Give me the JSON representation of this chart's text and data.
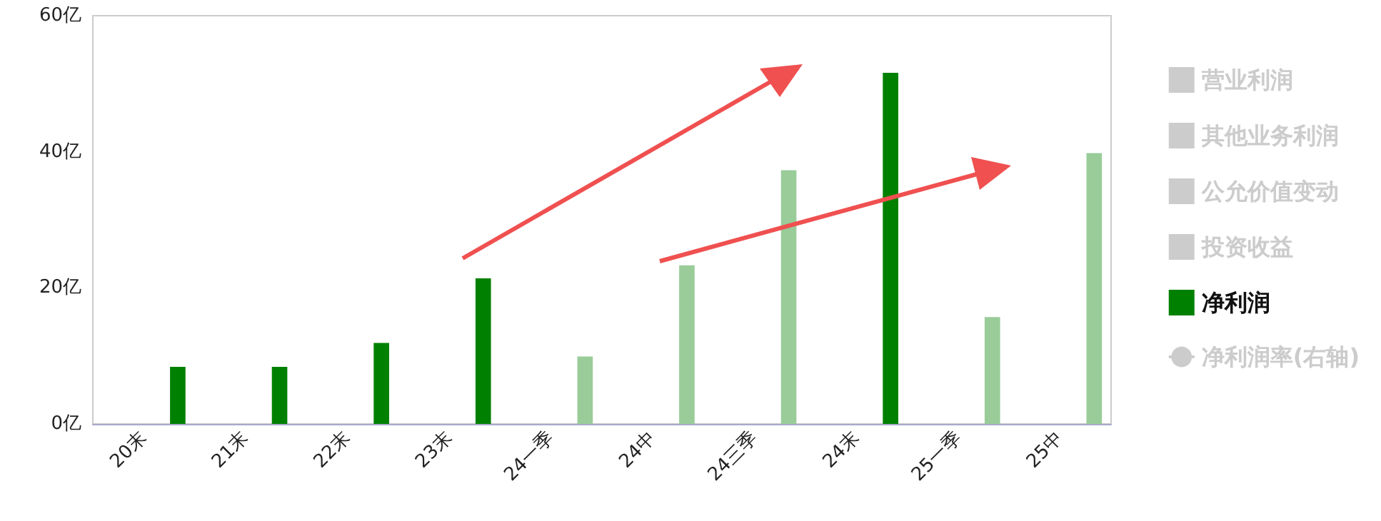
{
  "chart_data": {
    "type": "bar",
    "categories": [
      "20末",
      "21末",
      "22末",
      "23末",
      "24一季",
      "24中",
      "24三季",
      "24末",
      "25一季",
      "25中"
    ],
    "series": [
      {
        "name": "营业利润",
        "color": "#cccccc",
        "values": [
          null,
          null,
          null,
          null,
          null,
          null,
          null,
          null,
          null,
          null
        ]
      },
      {
        "name": "其他业务利润",
        "color": "#cccccc",
        "values": [
          null,
          null,
          null,
          null,
          null,
          null,
          null,
          null,
          null,
          null
        ]
      },
      {
        "name": "公允价值变动",
        "color": "#cccccc",
        "values": [
          null,
          null,
          null,
          null,
          null,
          null,
          null,
          null,
          null,
          null
        ]
      },
      {
        "name": "投资收益",
        "color": "#cccccc",
        "values": [
          null,
          null,
          null,
          null,
          null,
          null,
          null,
          null,
          null,
          null
        ]
      },
      {
        "name": "净利润",
        "color": "#008000",
        "colors": [
          "#008000",
          "#008000",
          "#008000",
          "#008000",
          "#99cc99",
          "#99cc99",
          "#99cc99",
          "#008000",
          "#99cc99",
          "#99cc99"
        ],
        "values": [
          8.4,
          8.4,
          11.9,
          21.4,
          9.9,
          23.3,
          37.3,
          51.6,
          15.7,
          39.8
        ]
      },
      {
        "name": "净利润率(右轴)",
        "type": "line",
        "color": "#cccccc",
        "values": [
          null,
          null,
          null,
          null,
          null,
          null,
          null,
          null,
          null,
          null
        ]
      }
    ],
    "ylim": [
      0,
      60
    ],
    "yticks": [
      {
        "value": 0,
        "label": "0亿"
      },
      {
        "value": 20,
        "label": "20亿"
      },
      {
        "value": 40,
        "label": "40亿"
      },
      {
        "value": 60,
        "label": "60亿"
      }
    ],
    "grid": false,
    "legend": "right"
  }
}
